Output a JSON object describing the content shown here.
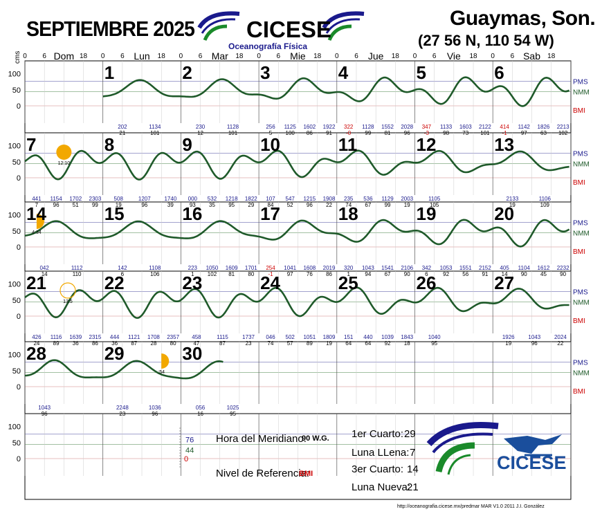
{
  "header": {
    "month_title": "SEPTIEMBRE 2025",
    "org_name": "CICESE",
    "org_subtitle": "Oceanografía Física",
    "location": "Guaymas, Son.",
    "coordinates": "(27 56 N, 110 54 W)"
  },
  "labels": {
    "units": "cms",
    "hour_ticks": [
      "0",
      "6",
      "18"
    ],
    "weekdays": [
      "Dom",
      "Lun",
      "Mar",
      "Mie",
      "Jue",
      "Vie",
      "Sab"
    ],
    "levels": [
      "PMS",
      "NMM",
      "BMI"
    ],
    "y_ticks": [
      "100",
      "50",
      "0"
    ]
  },
  "legend_values": {
    "pms": "76",
    "nmm": "44",
    "bmi": "0"
  },
  "info": {
    "meridian_label": "Hora del Meridiano:",
    "meridian_value": "90 W.G.",
    "reference_label": "Nivel de Referencia:",
    "reference_value": "BMI"
  },
  "moon_phases": [
    {
      "label": "1er Cuarto:",
      "day": "29"
    },
    {
      "label": "Luna LLena:",
      "day": "7"
    },
    {
      "label": "3er Cuarto:",
      "day": "14"
    },
    {
      "label": "Luna Nueva:",
      "day": "21"
    }
  ],
  "moon_labels": [
    "12:10",
    "4:34",
    "13:5",
    ":54"
  ],
  "footer": {
    "url": "http://oceanografia.cicese.mx/predmar  MAR V1.0 2011 J.I. González"
  },
  "colors": {
    "curve": "#1f5a2a",
    "pms": "#1a1a8c",
    "nmm": "#1f5a2a",
    "bmi": "#cc0000",
    "moon": "#f2a800",
    "high_time": "#1a1a8c",
    "low_red": "#cc0000"
  },
  "chart_data": {
    "type": "line",
    "title": "SEPTIEMBRE 2025",
    "ylabel": "cms",
    "ylim": [
      -20,
      120
    ],
    "reference_levels": {
      "PMS": 76,
      "NMM": 44,
      "BMI": 0
    },
    "days": [
      {
        "day": "1",
        "extremes": [
          {
            "t": "202",
            "h": "21"
          },
          {
            "t": "1134",
            "h": "101"
          }
        ]
      },
      {
        "day": "2",
        "extremes": [
          {
            "t": "230",
            "h": "12"
          },
          {
            "t": "1128",
            "h": "101"
          }
        ]
      },
      {
        "day": "3",
        "extremes": [
          {
            "t": "256",
            "h": "5"
          },
          {
            "t": "1125",
            "h": "100"
          },
          {
            "t": "1602",
            "h": "86"
          },
          {
            "t": "1922",
            "h": "91"
          }
        ]
      },
      {
        "day": "4",
        "extremes": [
          {
            "t": "322",
            "h": "-0",
            "neg": true
          },
          {
            "t": "1128",
            "h": "99"
          },
          {
            "t": "1552",
            "h": "81"
          },
          {
            "t": "2028",
            "h": "96"
          }
        ]
      },
      {
        "day": "5",
        "extremes": [
          {
            "t": "347",
            "h": "-3",
            "neg": true
          },
          {
            "t": "1133",
            "h": "98"
          },
          {
            "t": "1603",
            "h": "73"
          },
          {
            "t": "2122",
            "h": "101"
          }
        ]
      },
      {
        "day": "6",
        "extremes": [
          {
            "t": "414",
            "h": "-1",
            "neg": true
          },
          {
            "t": "1142",
            "h": "97"
          },
          {
            "t": "1826",
            "h": "63"
          },
          {
            "t": "2213",
            "h": "102"
          }
        ]
      },
      {
        "day": "7",
        "extremes": [
          {
            "t": "441",
            "h": "7"
          },
          {
            "t": "1154",
            "h": "96"
          },
          {
            "t": "1702",
            "h": "51"
          },
          {
            "t": "2303",
            "h": "99"
          }
        ]
      },
      {
        "day": "8",
        "extremes": [
          {
            "t": "508",
            "h": "19"
          },
          {
            "t": "1207",
            "h": "96"
          },
          {
            "t": "1740",
            "h": "39"
          }
        ]
      },
      {
        "day": "9",
        "extremes": [
          {
            "t": "000",
            "h": "93"
          },
          {
            "t": "532",
            "h": "35"
          },
          {
            "t": "1218",
            "h": "95"
          },
          {
            "t": "1822",
            "h": "29"
          }
        ]
      },
      {
        "day": "10",
        "extremes": [
          {
            "t": "107",
            "h": "84"
          },
          {
            "t": "547",
            "h": "52"
          },
          {
            "t": "1215",
            "h": "96"
          },
          {
            "t": "1908",
            "h": "22"
          }
        ]
      },
      {
        "day": "11",
        "extremes": [
          {
            "t": "235",
            "h": "74"
          },
          {
            "t": "536",
            "h": "67"
          },
          {
            "t": "1129",
            "h": "99"
          },
          {
            "t": "2003",
            "h": "19"
          }
        ]
      },
      {
        "day": "12",
        "extremes": [
          {
            "t": "1105",
            "h": "105"
          }
        ]
      },
      {
        "day": "13",
        "extremes": [
          {
            "t": "2133",
            "h": "19"
          },
          {
            "t": "1106",
            "h": "109"
          }
        ]
      },
      {
        "day": "14",
        "extremes": [
          {
            "t": "042",
            "h": "14"
          },
          {
            "t": "1112",
            "h": "110"
          }
        ]
      },
      {
        "day": "15",
        "extremes": [
          {
            "t": "142",
            "h": "6"
          },
          {
            "t": "1108",
            "h": "106"
          }
        ]
      },
      {
        "day": "16",
        "extremes": [
          {
            "t": "223",
            "h": "1"
          },
          {
            "t": "1050",
            "h": "102"
          },
          {
            "t": "1609",
            "h": "81"
          },
          {
            "t": "1701",
            "h": "80"
          }
        ]
      },
      {
        "day": "17",
        "extremes": [
          {
            "t": "254",
            "h": "-1",
            "neg": true
          },
          {
            "t": "1041",
            "h": "97"
          },
          {
            "t": "1608",
            "h": "76"
          },
          {
            "t": "2019",
            "h": "86"
          }
        ]
      },
      {
        "day": "18",
        "extremes": [
          {
            "t": "320",
            "h": "1"
          },
          {
            "t": "1043",
            "h": "94"
          },
          {
            "t": "1541",
            "h": "67"
          },
          {
            "t": "2106",
            "h": "90"
          }
        ]
      },
      {
        "day": "19",
        "extremes": [
          {
            "t": "342",
            "h": "6"
          },
          {
            "t": "1053",
            "h": "92"
          },
          {
            "t": "1551",
            "h": "56"
          },
          {
            "t": "2152",
            "h": "91"
          }
        ]
      },
      {
        "day": "20",
        "extremes": [
          {
            "t": "405",
            "h": "14"
          },
          {
            "t": "1104",
            "h": "90"
          },
          {
            "t": "1612",
            "h": "45"
          },
          {
            "t": "2232",
            "h": "90"
          }
        ]
      },
      {
        "day": "21",
        "extremes": [
          {
            "t": "426",
            "h": "24"
          },
          {
            "t": "1116",
            "h": "89"
          },
          {
            "t": "1639",
            "h": "36"
          },
          {
            "t": "2315",
            "h": "86"
          }
        ]
      },
      {
        "day": "22",
        "extremes": [
          {
            "t": "444",
            "h": "36"
          },
          {
            "t": "1121",
            "h": "87"
          },
          {
            "t": "1708",
            "h": "28"
          },
          {
            "t": "2357",
            "h": "80"
          }
        ]
      },
      {
        "day": "23",
        "extremes": [
          {
            "t": "458",
            "h": "47"
          },
          {
            "t": "1115",
            "h": "87"
          },
          {
            "t": "1737",
            "h": "23"
          }
        ]
      },
      {
        "day": "24",
        "extremes": [
          {
            "t": "046",
            "h": "74"
          },
          {
            "t": "502",
            "h": "57"
          },
          {
            "t": "1051",
            "h": "89"
          },
          {
            "t": "1809",
            "h": "19"
          }
        ]
      },
      {
        "day": "25",
        "extremes": [
          {
            "t": "151",
            "h": "64"
          },
          {
            "t": "440",
            "h": "64"
          },
          {
            "t": "1039",
            "h": "92"
          },
          {
            "t": "1843",
            "h": "18"
          }
        ]
      },
      {
        "day": "26",
        "extremes": [
          {
            "t": "1040",
            "h": "95"
          }
        ]
      },
      {
        "day": "27",
        "extremes": [
          {
            "t": "1926",
            "h": "19"
          },
          {
            "t": "1043",
            "h": "96"
          },
          {
            "t": "2024",
            "h": "22"
          }
        ]
      },
      {
        "day": "28",
        "extremes": [
          {
            "t": "1043",
            "h": "96"
          }
        ]
      },
      {
        "day": "29",
        "extremes": [
          {
            "t": "2248",
            "h": "23"
          },
          {
            "t": "1036",
            "h": "96"
          }
        ]
      },
      {
        "day": "30",
        "extremes": [
          {
            "t": "056",
            "h": "16"
          },
          {
            "t": "1025",
            "h": "95"
          }
        ]
      }
    ]
  }
}
